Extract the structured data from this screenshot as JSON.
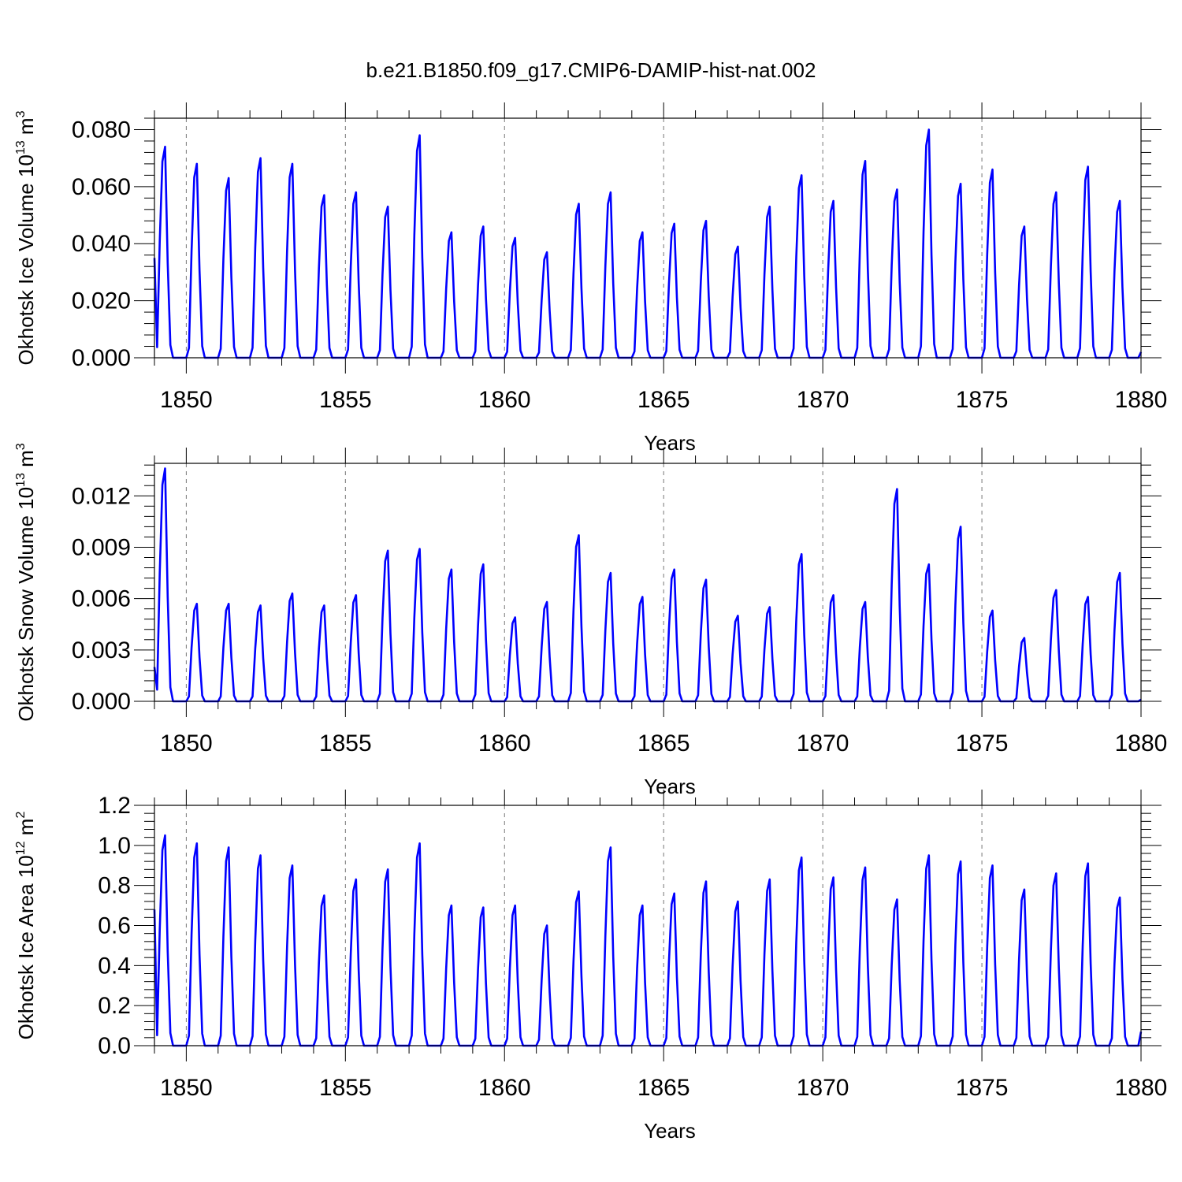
{
  "figure_title": "b.e21.B1850.f09_g17.CMIP6-DAMIP-hist-nat.002",
  "line_color": "#0000ff",
  "chart_data": [
    {
      "type": "line",
      "name": "ice-volume",
      "ylabel": "Okhotsk Ice Volume",
      "ylabel_unit": "10",
      "ylabel_exp": "13",
      "ylabel_unit2": "m",
      "ylabel_exp2": "3",
      "xlabel": "Years",
      "xlim": [
        1849,
        1880
      ],
      "ylim": [
        0,
        0.084
      ],
      "yticks": [
        0,
        0.02,
        0.04,
        0.06,
        0.08
      ],
      "ytick_labels": [
        "0.000",
        "0.020",
        "0.040",
        "0.060",
        "0.080"
      ],
      "xticks": [
        1850,
        1855,
        1860,
        1865,
        1870,
        1875,
        1880
      ],
      "xtick_labels": [
        "1850",
        "1855",
        "1860",
        "1865",
        "1870",
        "1875",
        "1880"
      ],
      "series": [
        {
          "name": "Okhotsk Ice Volume",
          "start": 0.035,
          "end": 0.002,
          "peaks": [
            0.074,
            0.068,
            0.063,
            0.07,
            0.068,
            0.057,
            0.058,
            0.053,
            0.078,
            0.044,
            0.046,
            0.042,
            0.037,
            0.054,
            0.058,
            0.044,
            0.047,
            0.048,
            0.039,
            0.053,
            0.064,
            0.055,
            0.069,
            0.059,
            0.08,
            0.061,
            0.066,
            0.046,
            0.058,
            0.067,
            0.055
          ]
        }
      ]
    },
    {
      "type": "line",
      "name": "snow-volume",
      "ylabel": "Okhotsk Snow Volume",
      "ylabel_unit": "10",
      "ylabel_exp": "13",
      "ylabel_unit2": "m",
      "ylabel_exp2": "3",
      "xlabel": "Years",
      "xlim": [
        1849,
        1880
      ],
      "ylim": [
        0,
        0.0139
      ],
      "yticks": [
        0,
        0.003,
        0.006,
        0.009,
        0.012
      ],
      "ytick_labels": [
        "0.000",
        "0.003",
        "0.006",
        "0.009",
        "0.012"
      ],
      "xticks": [
        1850,
        1855,
        1860,
        1865,
        1870,
        1875,
        1880
      ],
      "xtick_labels": [
        "1850",
        "1855",
        "1860",
        "1865",
        "1870",
        "1875",
        "1880"
      ],
      "series": [
        {
          "name": "Okhotsk Snow Volume",
          "start": 0.002,
          "end": 0.0001,
          "peaks": [
            0.0136,
            0.0057,
            0.0057,
            0.0056,
            0.0063,
            0.0056,
            0.0062,
            0.0088,
            0.0089,
            0.0077,
            0.008,
            0.0049,
            0.0058,
            0.0097,
            0.0075,
            0.0061,
            0.0077,
            0.0071,
            0.005,
            0.0055,
            0.0086,
            0.0062,
            0.0058,
            0.0124,
            0.008,
            0.0102,
            0.0053,
            0.0037,
            0.0065,
            0.0061,
            0.0075
          ]
        }
      ]
    },
    {
      "type": "line",
      "name": "ice-area",
      "ylabel": "Okhotsk Ice Area",
      "ylabel_unit": "10",
      "ylabel_exp": "12",
      "ylabel_unit2": "m",
      "ylabel_exp2": "2",
      "xlabel": "Years",
      "xlim": [
        1849,
        1880
      ],
      "ylim": [
        0,
        1.2
      ],
      "yticks": [
        0,
        0.2,
        0.4,
        0.6,
        0.8,
        1.0,
        1.2
      ],
      "ytick_labels": [
        "0.0",
        "0.2",
        "0.4",
        "0.6",
        "0.8",
        "1.0",
        "1.2"
      ],
      "xticks": [
        1850,
        1855,
        1860,
        1865,
        1870,
        1875,
        1880
      ],
      "xtick_labels": [
        "1850",
        "1855",
        "1860",
        "1865",
        "1870",
        "1875",
        "1880"
      ],
      "series": [
        {
          "name": "Okhotsk Ice Area",
          "start": 0.68,
          "end": 0.07,
          "peaks": [
            1.05,
            1.01,
            0.99,
            0.95,
            0.9,
            0.75,
            0.83,
            0.88,
            1.01,
            0.7,
            0.69,
            0.7,
            0.6,
            0.77,
            0.99,
            0.7,
            0.76,
            0.82,
            0.72,
            0.83,
            0.94,
            0.84,
            0.89,
            0.73,
            0.95,
            0.92,
            0.9,
            0.78,
            0.86,
            0.91,
            0.74
          ]
        }
      ]
    }
  ]
}
